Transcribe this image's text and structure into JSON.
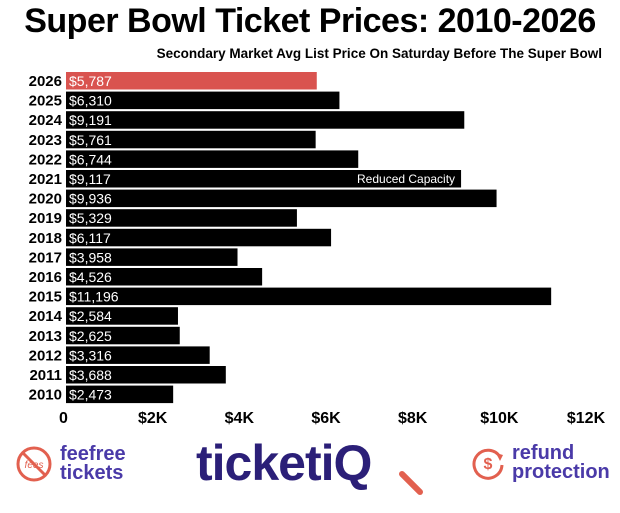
{
  "chart_data": {
    "type": "bar",
    "orientation": "horizontal",
    "title": "Super Bowl Ticket Prices: 2010-2026",
    "subtitle": "Secondary Market Avg List Price On Saturday Before The Super Bowl",
    "categories": [
      "2026",
      "2025",
      "2024",
      "2023",
      "2022",
      "2021",
      "2020",
      "2019",
      "2018",
      "2017",
      "2016",
      "2015",
      "2014",
      "2013",
      "2012",
      "2011",
      "2010"
    ],
    "values": [
      5787,
      6310,
      9191,
      5761,
      6744,
      9117,
      9936,
      5329,
      6117,
      3958,
      4526,
      11196,
      2584,
      2625,
      3316,
      3688,
      2473
    ],
    "value_labels": [
      "$5,787",
      "$6,310",
      "$9,191",
      "$5,761",
      "$6,744",
      "$9,117",
      "$9,936",
      "$5,329",
      "$6,117",
      "$3,958",
      "$4,526",
      "$11,196",
      "$2,584",
      "$2,625",
      "$3,316",
      "$3,688",
      "$2,473"
    ],
    "highlight_category": "2026",
    "xlim": [
      0,
      12000
    ],
    "x_ticks": [
      0,
      2000,
      4000,
      6000,
      8000,
      10000,
      12000
    ],
    "x_tick_labels": [
      "0",
      "$2K",
      "$4K",
      "$6K",
      "$8K",
      "$10K",
      "$12K"
    ],
    "annotations": [
      {
        "category": "2021",
        "text": "Reduced Capacity"
      }
    ],
    "colors": {
      "bar": "#000000",
      "highlight": "#d9534f",
      "label": "#ffffff"
    },
    "xlabel": "",
    "ylabel": ""
  },
  "footer": {
    "fee_logo_line1": "feefree",
    "fee_logo_line2": "tickets",
    "fee_badge_text": "fees",
    "brand_main": "ticket",
    "brand_accent": "iQ",
    "refund_line1": "refund",
    "refund_line2": "protection",
    "refund_icon_text": "$"
  }
}
